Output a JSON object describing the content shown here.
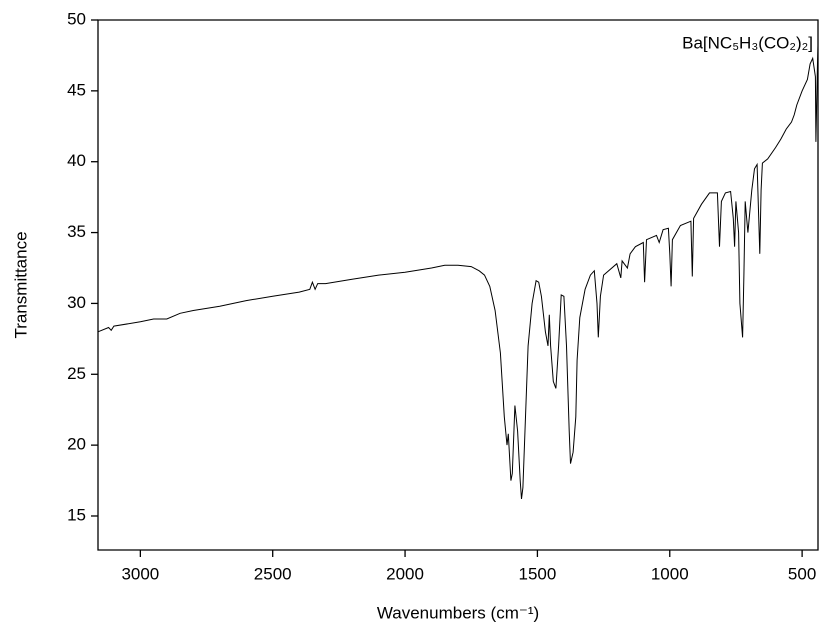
{
  "chart_data": {
    "type": "line",
    "xlabel": "Wavenumbers (cm⁻¹)",
    "ylabel": "Transmittance",
    "xlim": [
      3160,
      440
    ],
    "ylim": [
      12.6,
      50
    ],
    "xticks": [
      3000,
      2500,
      2000,
      1500,
      1000,
      500
    ],
    "yticks": [
      15,
      20,
      25,
      30,
      35,
      40,
      45,
      50
    ],
    "x": [
      3160,
      3120,
      3110,
      3100,
      3000,
      2950,
      2900,
      2850,
      2800,
      2700,
      2600,
      2500,
      2400,
      2360,
      2350,
      2340,
      2330,
      2300,
      2200,
      2100,
      2000,
      1900,
      1850,
      1800,
      1750,
      1720,
      1700,
      1680,
      1660,
      1640,
      1625,
      1615,
      1610,
      1600,
      1595,
      1585,
      1575,
      1565,
      1560,
      1555,
      1545,
      1535,
      1520,
      1505,
      1495,
      1485,
      1470,
      1460,
      1455,
      1450,
      1440,
      1430,
      1420,
      1410,
      1400,
      1390,
      1380,
      1375,
      1365,
      1355,
      1350,
      1340,
      1320,
      1300,
      1285,
      1275,
      1270,
      1262,
      1250,
      1200,
      1185,
      1180,
      1160,
      1150,
      1130,
      1100,
      1095,
      1088,
      1050,
      1040,
      1025,
      1005,
      1000,
      995,
      990,
      960,
      920,
      915,
      910,
      880,
      850,
      820,
      812,
      805,
      790,
      770,
      760,
      755,
      750,
      740,
      735,
      725,
      720,
      715,
      705,
      700,
      690,
      680,
      670,
      660,
      655,
      650,
      630,
      600,
      580,
      560,
      540,
      530,
      520,
      500,
      480,
      470,
      460,
      450,
      448,
      442,
      440
    ],
    "series": [
      {
        "name": "Ba[NC₅H₃(CO₂)₂]",
        "color": "#000000",
        "values": [
          28.0,
          28.3,
          28.1,
          28.4,
          28.7,
          28.9,
          28.9,
          29.3,
          29.5,
          29.8,
          30.2,
          30.5,
          30.8,
          31.0,
          31.5,
          31.0,
          31.4,
          31.4,
          31.7,
          32.0,
          32.2,
          32.5,
          32.7,
          32.7,
          32.6,
          32.3,
          32.0,
          31.2,
          29.5,
          26.5,
          22.0,
          20.0,
          20.8,
          17.5,
          18.0,
          22.8,
          21.0,
          17.5,
          16.2,
          17.0,
          22.0,
          27.0,
          30.0,
          31.6,
          31.5,
          30.5,
          28.0,
          27.0,
          29.2,
          27.0,
          24.5,
          24.0,
          27.0,
          30.6,
          30.5,
          27.0,
          21.0,
          18.7,
          19.5,
          22.0,
          26.0,
          29.0,
          31.0,
          32.0,
          32.3,
          30.0,
          27.6,
          30.5,
          32.0,
          32.8,
          31.8,
          33.0,
          32.5,
          33.5,
          34.0,
          34.3,
          31.5,
          34.5,
          34.8,
          34.3,
          35.2,
          35.3,
          33.5,
          31.2,
          34.5,
          35.5,
          35.8,
          31.9,
          36.0,
          37.0,
          37.8,
          37.8,
          34.0,
          37.2,
          37.8,
          37.9,
          36.0,
          34.0,
          37.2,
          35.0,
          30.0,
          27.6,
          32.0,
          37.2,
          35.0,
          36.0,
          38.0,
          39.5,
          39.8,
          33.5,
          38.0,
          39.9,
          40.2,
          41.0,
          41.6,
          42.3,
          42.8,
          43.3,
          44.0,
          45.0,
          45.8,
          46.9,
          47.3,
          46.0,
          41.4,
          47.0,
          48.2
        ]
      }
    ]
  }
}
